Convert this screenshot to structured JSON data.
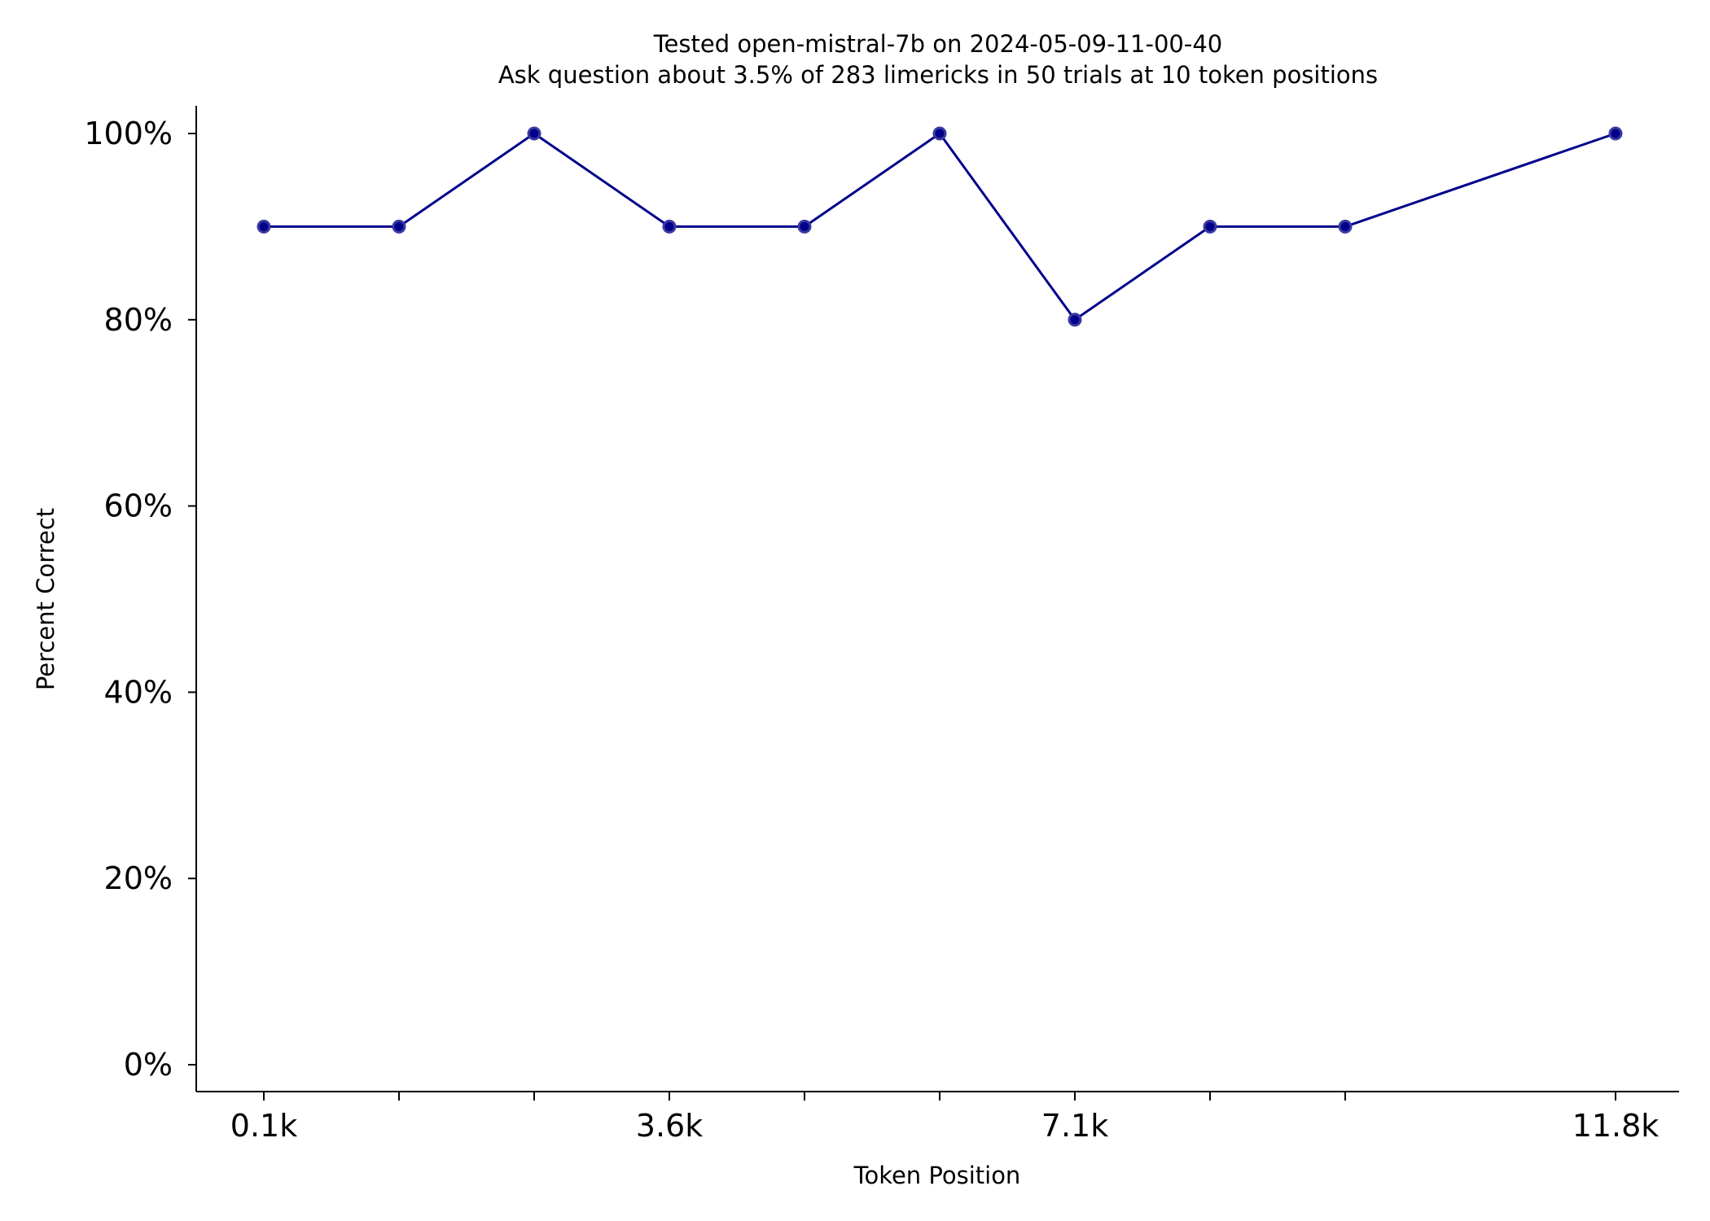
{
  "chart_data": {
    "type": "line",
    "title": "Tested open-mistral-7b on 2024-05-09-11-00-40",
    "subtitle": "Ask question about 3.5% of 283 limericks in 50 trials at 10 token positions",
    "xlabel": "Token Position",
    "ylabel": "Percent Correct",
    "x": [
      1,
      2,
      3,
      4,
      5,
      6,
      7,
      8,
      9,
      10
    ],
    "x_tick_labels": [
      {
        "x": 1,
        "label": "0.1k"
      },
      {
        "x": 4,
        "label": "3.6k"
      },
      {
        "x": 7,
        "label": "7.1k"
      },
      {
        "x": 11,
        "label": "11.8k"
      }
    ],
    "x_minor_ticks": [
      2,
      3,
      5,
      6,
      8,
      9
    ],
    "y_ticks": [
      {
        "y": 0,
        "label": "0%"
      },
      {
        "y": 20,
        "label": "20%"
      },
      {
        "y": 40,
        "label": "40%"
      },
      {
        "y": 60,
        "label": "60%"
      },
      {
        "y": 80,
        "label": "80%"
      },
      {
        "y": 100,
        "label": "100%"
      }
    ],
    "series": [
      {
        "x": [
          1,
          2,
          3,
          4,
          5,
          6,
          7,
          8,
          9,
          11
        ],
        "values": [
          90,
          90,
          100,
          90,
          90,
          100,
          80,
          90,
          90,
          100
        ]
      }
    ],
    "xlim": [
      0.5,
      12
    ],
    "ylim": [
      -3,
      103
    ],
    "grid": false,
    "legend": "none",
    "line_color": "#00008b",
    "marker_color": "#00008b",
    "marker_edge_color": "#3a3aa0"
  }
}
